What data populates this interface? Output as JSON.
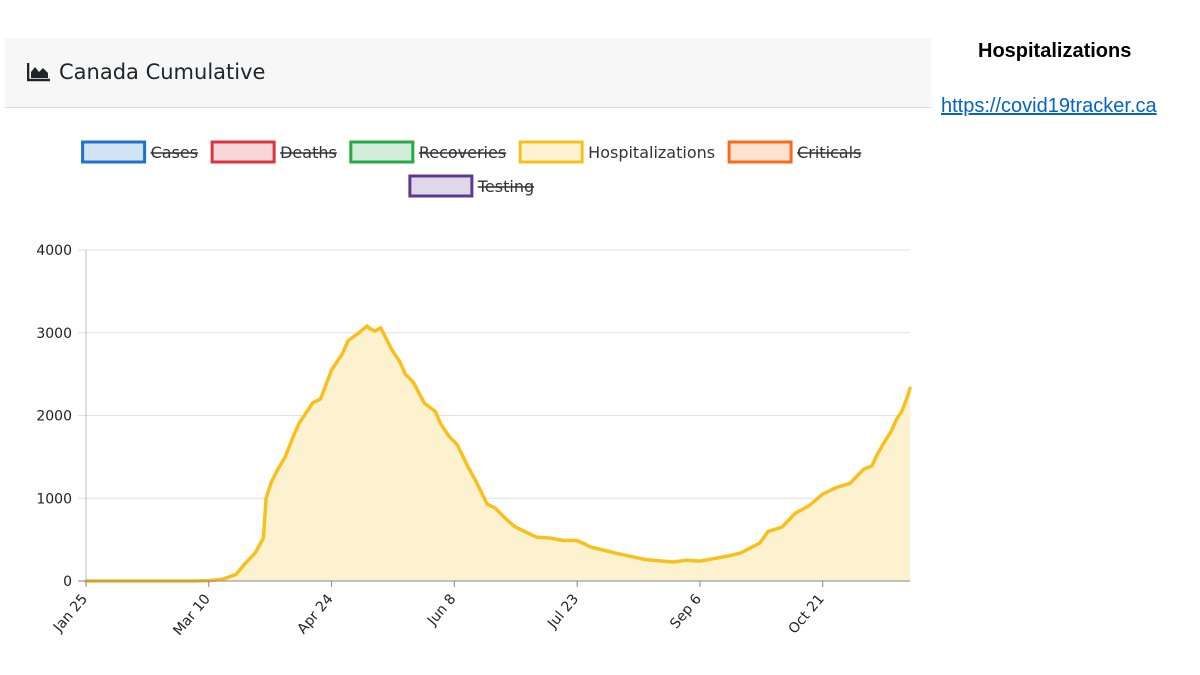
{
  "header": {
    "title": "Canada Cumulative",
    "icon": "area-chart-icon"
  },
  "side": {
    "title": "Hospitalizations",
    "link": "https://covid19tracker.ca"
  },
  "colors": {
    "cases": "#1c73c9",
    "deaths": "#d9363e",
    "recoveries": "#28a745",
    "hospitalizations": "#f8c01c",
    "hospitalizations_fill": "#fdf2cf",
    "criticals": "#f96b17",
    "testing": "#5d3a8e",
    "grid": "#e0e0e0",
    "axis": "#888888"
  },
  "chart_data": {
    "type": "area",
    "title": "",
    "xlabel": "",
    "ylabel": "",
    "ylim": [
      0,
      4000
    ],
    "yticks": [
      0,
      1000,
      2000,
      3000,
      4000
    ],
    "ytick_labels": [
      "0",
      "1000",
      "2000",
      "3000",
      "4000"
    ],
    "xlim": [
      0,
      302
    ],
    "xticks": [
      0,
      45,
      90,
      135,
      180,
      225,
      270
    ],
    "xtick_labels": [
      "Jan 25",
      "Mar 10",
      "Apr 24",
      "Jun 8",
      "Jul 23",
      "Sep 6",
      "Oct 21"
    ],
    "grid": true,
    "legend": [
      {
        "name": "Cases",
        "hidden": true,
        "color_key": "cases"
      },
      {
        "name": "Deaths",
        "hidden": true,
        "color_key": "deaths"
      },
      {
        "name": "Recoveries",
        "hidden": true,
        "color_key": "recoveries"
      },
      {
        "name": "Hospitalizations",
        "hidden": false,
        "color_key": "hospitalizations"
      },
      {
        "name": "Criticals",
        "hidden": true,
        "color_key": "criticals"
      },
      {
        "name": "Testing",
        "hidden": true,
        "color_key": "testing"
      }
    ],
    "series": [
      {
        "name": "Hospitalizations",
        "x": [
          0,
          40,
          45,
          50,
          55,
          58,
          62,
          65,
          66,
          68,
          70,
          73,
          76,
          78,
          80,
          83,
          86,
          90,
          94,
          96,
          98,
          100,
          103,
          104,
          106,
          108,
          112,
          115,
          117,
          120,
          124,
          128,
          130,
          133,
          136,
          140,
          143,
          147,
          150,
          153,
          157,
          160,
          165,
          170,
          175,
          180,
          185,
          195,
          205,
          215,
          220,
          225,
          230,
          235,
          240,
          247,
          250,
          255,
          260,
          265,
          270,
          275,
          280,
          285,
          288,
          290,
          293,
          295,
          297,
          299,
          301,
          302
        ],
        "y": [
          0,
          0,
          5,
          20,
          80,
          200,
          340,
          520,
          1000,
          1200,
          1330,
          1500,
          1750,
          1900,
          2000,
          2150,
          2200,
          2550,
          2750,
          2900,
          2950,
          3000,
          3080,
          3050,
          3020,
          3060,
          2800,
          2650,
          2500,
          2400,
          2150,
          2050,
          1900,
          1750,
          1650,
          1380,
          1200,
          930,
          880,
          780,
          660,
          610,
          530,
          520,
          490,
          490,
          410,
          330,
          260,
          230,
          250,
          240,
          270,
          300,
          340,
          460,
          600,
          650,
          820,
          910,
          1050,
          1130,
          1180,
          1350,
          1390,
          1530,
          1700,
          1800,
          1950,
          2050,
          2220,
          2330
        ]
      }
    ]
  }
}
